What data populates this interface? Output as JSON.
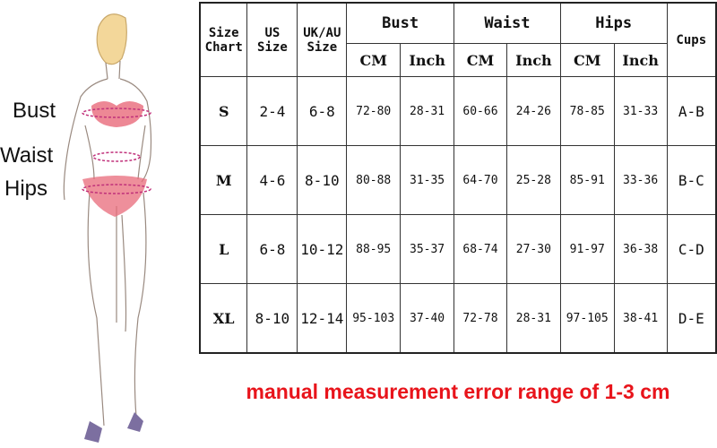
{
  "figure_labels": {
    "bust": "Bust",
    "waist": "Waist",
    "hips": "Hips"
  },
  "table": {
    "headers": {
      "size_chart": "Size Chart",
      "us_size": "US Size",
      "uk_au_size": "UK/AU Size",
      "bust": "Bust",
      "waist": "Waist",
      "hips": "Hips",
      "cups": "Cups",
      "cm": "CM",
      "inch": "Inch"
    },
    "rows": [
      {
        "size": "S",
        "us": "2-4",
        "uk": "6-8",
        "bust_cm": "72-80",
        "bust_in": "28-31",
        "waist_cm": "60-66",
        "waist_in": "24-26",
        "hips_cm": "78-85",
        "hips_in": "31-33",
        "cups": "A-B"
      },
      {
        "size": "M",
        "us": "4-6",
        "uk": "8-10",
        "bust_cm": "80-88",
        "bust_in": "31-35",
        "waist_cm": "64-70",
        "waist_in": "25-28",
        "hips_cm": "85-91",
        "hips_in": "33-36",
        "cups": "B-C"
      },
      {
        "size": "L",
        "us": "6-8",
        "uk": "10-12",
        "bust_cm": "88-95",
        "bust_in": "35-37",
        "waist_cm": "68-74",
        "waist_in": "27-30",
        "hips_cm": "91-97",
        "hips_in": "36-38",
        "cups": "C-D"
      },
      {
        "size": "XL",
        "us": "8-10",
        "uk": "12-14",
        "bust_cm": "95-103",
        "bust_in": "37-40",
        "waist_cm": "72-78",
        "waist_in": "28-31",
        "hips_cm": "97-105",
        "hips_in": "38-41",
        "cups": "D-E"
      }
    ]
  },
  "note": "manual measurement error range of 1-3 cm",
  "colors": {
    "note": "#e8141b",
    "lingerie": "#e86a7a",
    "measure_line": "#c0307a"
  }
}
